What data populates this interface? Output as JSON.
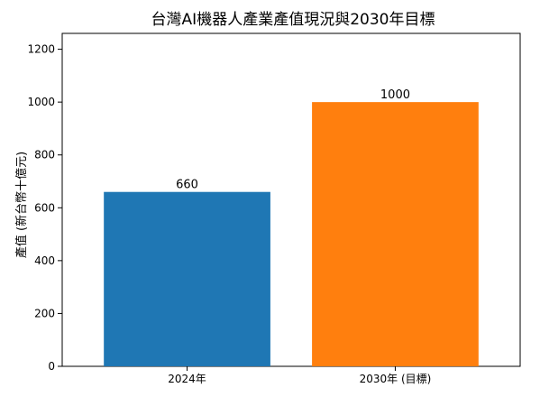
{
  "chart_data": {
    "type": "bar",
    "title": "台灣AI機器人產業產值現況與2030年目標",
    "xlabel": "",
    "ylabel": "產值 (新台幣十億元)",
    "categories": [
      "2024年",
      "2030年 (目標)"
    ],
    "values": [
      660,
      1000
    ],
    "data_labels": [
      "660",
      "1000"
    ],
    "colors": [
      "#1f77b4",
      "#ff7f0e"
    ],
    "ylim": [
      0,
      1260
    ],
    "yticks": [
      0,
      200,
      400,
      600,
      800,
      1000,
      1200
    ],
    "ytick_labels": [
      "0",
      "200",
      "400",
      "600",
      "800",
      "1000",
      "1200"
    ],
    "grid": false,
    "legend": "none"
  }
}
